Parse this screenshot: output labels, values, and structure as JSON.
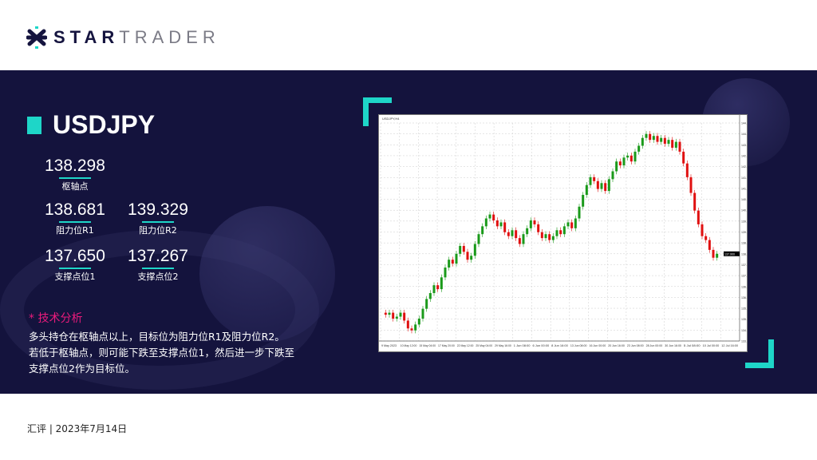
{
  "brand": {
    "logo_bold": "STAR",
    "logo_light": "TRADER",
    "colors": {
      "navy": "#14133d",
      "teal": "#1ed6c8",
      "pink": "#ea1b7c"
    }
  },
  "symbol": "USDJPY",
  "levels": {
    "pivot": {
      "value": "138.298",
      "label": "枢轴点"
    },
    "r1": {
      "value": "138.681",
      "label": "阻力位R1"
    },
    "r2": {
      "value": "139.329",
      "label": "阻力位R2"
    },
    "s1": {
      "value": "137.650",
      "label": "支撑点位1"
    },
    "s2": {
      "value": "137.267",
      "label": "支撑点位2"
    }
  },
  "analysis": {
    "heading": "* 技术分析",
    "lines": [
      "多头持仓在枢轴点以上，目标位为阻力位R1及阻力位R2。",
      "若低于枢轴点，则可能下跌至支撑点位1，然后进一步下跌至",
      "支撑点位2作为目标位。"
    ]
  },
  "footer": "汇评 | 2023年7月14日",
  "chart_data": {
    "type": "candlestick",
    "header": "USDJPY,H4",
    "ylim": [
      133.46,
      144.56
    ],
    "grid": true,
    "up_color": "#1a9a1a",
    "down_color": "#e01010",
    "x_tick_labels": [
      "9 May 2023",
      "10 May 12:00",
      "15 May 04:00",
      "17 May 20:00",
      "22 May 12:00",
      "25 May 04:00",
      "29 May 16:00",
      "1 Jun 08:00",
      "6 Jun 00:00",
      "8 Jun 16:00",
      "13 Jun 08:00",
      "16 Jun 00:00",
      "20 Jun 16:00",
      "23 Jun 08:00",
      "28 Jun 00:00",
      "30 Jun 16:00",
      "5 Jul 08:00",
      "10 Jul 00:00",
      "12 Jul 16:00"
    ],
    "y_tick_labels": [
      "144.560",
      "144.030",
      "143.500",
      "142.970",
      "142.440",
      "141.910",
      "141.380",
      "140.850",
      "140.320",
      "139.790",
      "139.260",
      "138.730",
      "138.200",
      "137.670",
      "137.140",
      "136.610",
      "136.080",
      "135.550",
      "135.020",
      "134.490",
      "133.960"
    ],
    "last_price": "137.900",
    "closes": [
      134.8,
      134.9,
      134.6,
      134.7,
      134.9,
      134.5,
      134.1,
      134.0,
      134.3,
      134.6,
      135.1,
      135.6,
      135.9,
      136.3,
      136.1,
      136.7,
      137.2,
      137.6,
      137.4,
      137.9,
      138.3,
      138.0,
      137.6,
      137.8,
      138.4,
      138.9,
      139.3,
      139.7,
      139.9,
      139.6,
      139.3,
      139.5,
      139.0,
      138.8,
      139.1,
      138.7,
      138.4,
      138.9,
      139.2,
      139.6,
      139.4,
      139.0,
      138.7,
      138.9,
      138.6,
      138.8,
      139.1,
      138.9,
      139.3,
      139.5,
      139.2,
      139.7,
      140.3,
      140.9,
      141.4,
      141.8,
      141.6,
      141.2,
      141.5,
      141.1,
      141.7,
      142.1,
      142.6,
      142.4,
      142.8,
      142.9,
      142.6,
      143.1,
      143.4,
      143.8,
      144.0,
      143.7,
      143.9,
      143.6,
      143.8,
      143.5,
      143.7,
      143.3,
      143.6,
      143.1,
      142.5,
      141.8,
      141.0,
      140.1,
      139.4,
      138.8,
      138.6,
      138.1,
      137.7,
      137.9
    ]
  }
}
